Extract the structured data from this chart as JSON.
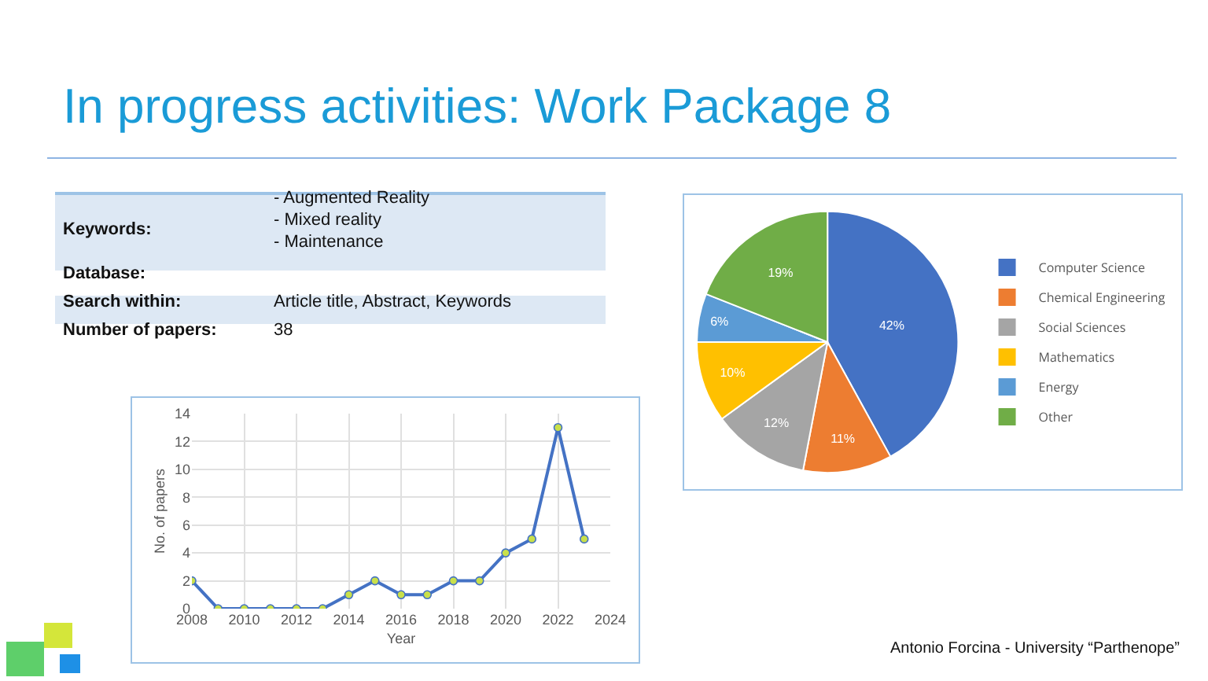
{
  "chart_data": [
    {
      "type": "other",
      "title": "In progress activities: Work Package 8",
      "annotations": [
        "Keywords:",
        "- Augmented Reality",
        "- Mixed reality",
        "- Maintenance",
        "Database:",
        "Search within:",
        "Article title, Abstract, Keywords",
        "Number of papers:",
        "38",
        "Antonio Forcina - University “Parthenope”"
      ]
    },
    {
      "type": "line",
      "xlabel": "Year",
      "ylabel": "No. of papers",
      "x": [
        2008,
        2009,
        2010,
        2011,
        2012,
        2013,
        2014,
        2015,
        2016,
        2017,
        2018,
        2019,
        2020,
        2021,
        2022,
        2023
      ],
      "series": [
        {
          "color": "#4472c4",
          "values": [
            2,
            0,
            0,
            0,
            0,
            0,
            1,
            2,
            1,
            1,
            2,
            2,
            4,
            5,
            13,
            5
          ]
        }
      ],
      "xlim": [
        2008,
        2024
      ],
      "xticks": [
        2008,
        2010,
        2012,
        2014,
        2016,
        2018,
        2020,
        2022,
        2024
      ],
      "ylim": [
        0,
        14
      ],
      "yticks": [
        0,
        2,
        4,
        6,
        8,
        10,
        12,
        14
      ],
      "grid": true,
      "marker": "circle",
      "line_style": "solid",
      "legend": false
    },
    {
      "type": "pie",
      "categories": [
        "Computer Science",
        "Chemical Engineering",
        "Social Sciences",
        "Mathematics",
        "Energy",
        "Other"
      ],
      "values": [
        42,
        11,
        12,
        10,
        6,
        19
      ],
      "colors": [
        "#4472c4",
        "#ed7d31",
        "#a5a5a5",
        "#ffc000",
        "#5b9bd5",
        "#70ad47"
      ],
      "value_labels": [
        "42%",
        "11%",
        "12%",
        "10%",
        "6%",
        "19%"
      ],
      "legend": "right"
    }
  ]
}
